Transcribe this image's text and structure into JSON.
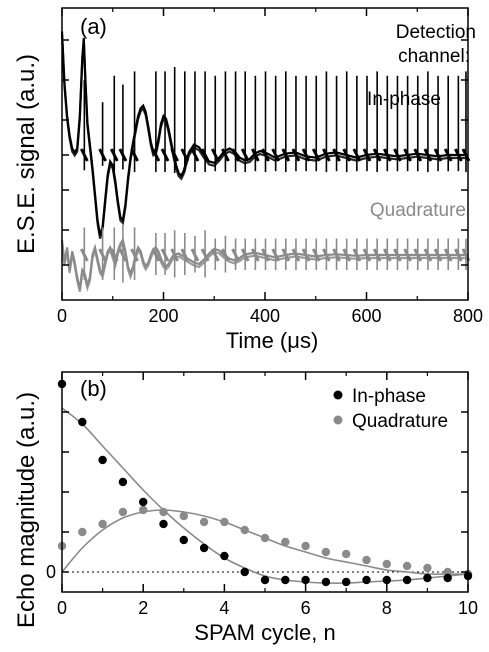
{
  "chart_data": [
    {
      "panel": "(a)",
      "type": "line",
      "xlabel": "Time (",
      "xlabel_mu": "μ",
      "xlabel_unit": "s)",
      "ylabel": "E.S.E. signal (a.u.)",
      "xlim": [
        0,
        800
      ],
      "xticks": [
        "0",
        "200",
        "400",
        "600",
        "800"
      ],
      "yticks_labeled": false,
      "annotation_lines": [
        "Detection",
        "channel:"
      ],
      "series": [
        {
          "name": "In-phase",
          "color": "#000000",
          "baseline": 0,
          "comment_values": "smooth echo envelope decaying to baseline with sharp periodic spikes",
          "points": [
            [
              0,
              0.95
            ],
            [
              5,
              0.55
            ],
            [
              10,
              0.3
            ],
            [
              15,
              0.15
            ],
            [
              20,
              0.05
            ],
            [
              25,
              0.02
            ],
            [
              30,
              0.05
            ],
            [
              35,
              0.3
            ],
            [
              40,
              0.75
            ],
            [
              43,
              0.9
            ],
            [
              46,
              0.6
            ],
            [
              50,
              0.25
            ],
            [
              55,
              0.08
            ],
            [
              60,
              -0.1
            ],
            [
              65,
              -0.3
            ],
            [
              70,
              -0.5
            ],
            [
              75,
              -0.62
            ],
            [
              80,
              -0.55
            ],
            [
              85,
              -0.35
            ],
            [
              90,
              -0.15
            ],
            [
              95,
              -0.05
            ],
            [
              100,
              -0.08
            ],
            [
              105,
              -0.2
            ],
            [
              110,
              -0.35
            ],
            [
              115,
              -0.48
            ],
            [
              120,
              -0.5
            ],
            [
              125,
              -0.38
            ],
            [
              130,
              -0.18
            ],
            [
              135,
              -0.02
            ],
            [
              140,
              0.1
            ],
            [
              145,
              0.2
            ],
            [
              150,
              0.3
            ],
            [
              155,
              0.36
            ],
            [
              160,
              0.38
            ],
            [
              165,
              0.33
            ],
            [
              170,
              0.22
            ],
            [
              175,
              0.1
            ],
            [
              180,
              0.02
            ],
            [
              185,
              0.03
            ],
            [
              190,
              0.12
            ],
            [
              195,
              0.24
            ],
            [
              200,
              0.3
            ],
            [
              205,
              0.28
            ],
            [
              210,
              0.2
            ],
            [
              215,
              0.1
            ],
            [
              220,
              0.0
            ],
            [
              225,
              -0.08
            ],
            [
              230,
              -0.14
            ],
            [
              235,
              -0.16
            ],
            [
              240,
              -0.12
            ],
            [
              245,
              -0.05
            ],
            [
              250,
              0.02
            ],
            [
              260,
              0.08
            ],
            [
              270,
              0.06
            ],
            [
              280,
              0.0
            ],
            [
              290,
              -0.05
            ],
            [
              300,
              -0.06
            ],
            [
              310,
              -0.02
            ],
            [
              320,
              0.03
            ],
            [
              330,
              0.05
            ],
            [
              340,
              0.03
            ],
            [
              350,
              -0.02
            ],
            [
              360,
              -0.04
            ],
            [
              370,
              -0.03
            ],
            [
              380,
              0.01
            ],
            [
              390,
              0.03
            ],
            [
              400,
              0.02
            ],
            [
              420,
              -0.02
            ],
            [
              440,
              0.01
            ],
            [
              460,
              0.02
            ],
            [
              480,
              -0.01
            ],
            [
              500,
              -0.02
            ],
            [
              520,
              0.01
            ],
            [
              540,
              0.02
            ],
            [
              560,
              0.0
            ],
            [
              580,
              -0.02
            ],
            [
              600,
              0.0
            ],
            [
              620,
              0.01
            ],
            [
              640,
              0.0
            ],
            [
              660,
              -0.01
            ],
            [
              680,
              0.0
            ],
            [
              700,
              0.01
            ],
            [
              720,
              0.0
            ],
            [
              740,
              -0.01
            ],
            [
              760,
              0.0
            ],
            [
              780,
              0.0
            ],
            [
              800,
              0.0
            ]
          ],
          "spikes_x": [
            44,
            80,
            103,
            120,
            143,
            185,
            203,
            222,
            242,
            262,
            282,
            302,
            322,
            342,
            361,
            381,
            401,
            421,
            441,
            461,
            481,
            501,
            521,
            541,
            561,
            581,
            601,
            621,
            641,
            661,
            681,
            701,
            721,
            741,
            761,
            781,
            796
          ],
          "spike_amp": [
            0.85,
            0.6,
            0.9,
            0.8,
            0.95,
            0.95,
            0.95,
            1.0,
            0.95,
            0.95,
            0.95,
            0.9,
            0.95,
            0.95,
            0.95,
            0.9,
            0.95,
            0.9,
            0.95,
            0.9,
            0.9,
            0.9,
            0.95,
            0.9,
            0.95,
            0.9,
            0.9,
            0.95,
            0.9,
            0.9,
            0.9,
            0.9,
            0.95,
            0.9,
            0.9,
            0.9,
            0.95
          ]
        },
        {
          "name": "Quadrature",
          "color": "#8a8a8a",
          "baseline": 0,
          "points": [
            [
              0,
              0.2
            ],
            [
              5,
              -0.1
            ],
            [
              10,
              0.1
            ],
            [
              15,
              -0.2
            ],
            [
              20,
              0.05
            ],
            [
              25,
              -0.1
            ],
            [
              30,
              -0.3
            ],
            [
              35,
              -0.45
            ],
            [
              40,
              -0.2
            ],
            [
              45,
              -0.25
            ],
            [
              50,
              -0.4
            ],
            [
              55,
              -0.3
            ],
            [
              60,
              0.0
            ],
            [
              65,
              0.1
            ],
            [
              70,
              -0.05
            ],
            [
              75,
              -0.2
            ],
            [
              80,
              -0.25
            ],
            [
              85,
              -0.1
            ],
            [
              90,
              0.05
            ],
            [
              95,
              0.1
            ],
            [
              100,
              0.0
            ],
            [
              105,
              -0.1
            ],
            [
              110,
              0.05
            ],
            [
              115,
              0.15
            ],
            [
              120,
              0.2
            ],
            [
              125,
              0.05
            ],
            [
              130,
              -0.15
            ],
            [
              135,
              -0.25
            ],
            [
              140,
              -0.15
            ],
            [
              145,
              0.0
            ],
            [
              150,
              0.1
            ],
            [
              155,
              0.05
            ],
            [
              160,
              -0.08
            ],
            [
              165,
              -0.15
            ],
            [
              170,
              -0.1
            ],
            [
              175,
              0.0
            ],
            [
              180,
              0.08
            ],
            [
              185,
              0.1
            ],
            [
              190,
              0.05
            ],
            [
              195,
              -0.05
            ],
            [
              200,
              -0.12
            ],
            [
              205,
              -0.15
            ],
            [
              210,
              -0.12
            ],
            [
              215,
              -0.05
            ],
            [
              220,
              0.0
            ],
            [
              230,
              0.02
            ],
            [
              240,
              -0.02
            ],
            [
              250,
              -0.06
            ],
            [
              260,
              -0.1
            ],
            [
              270,
              -0.12
            ],
            [
              280,
              -0.06
            ],
            [
              290,
              0.02
            ],
            [
              300,
              0.08
            ],
            [
              310,
              0.06
            ],
            [
              320,
              0.0
            ],
            [
              330,
              -0.05
            ],
            [
              340,
              -0.07
            ],
            [
              350,
              -0.04
            ],
            [
              360,
              0.01
            ],
            [
              380,
              0.03
            ],
            [
              400,
              0.0
            ],
            [
              420,
              -0.03
            ],
            [
              440,
              0.0
            ],
            [
              460,
              0.02
            ],
            [
              480,
              0.0
            ],
            [
              500,
              -0.02
            ],
            [
              520,
              0.0
            ],
            [
              540,
              0.01
            ],
            [
              560,
              0.0
            ],
            [
              580,
              -0.01
            ],
            [
              600,
              0.0
            ],
            [
              640,
              0.0
            ],
            [
              680,
              0.0
            ],
            [
              720,
              0.0
            ],
            [
              760,
              0.0
            ],
            [
              800,
              0.0
            ]
          ],
          "spikes_x": [
            44,
            80,
            103,
            120,
            143,
            185,
            203,
            222,
            242,
            262,
            282,
            302,
            322,
            342,
            361,
            381,
            401,
            421,
            441,
            461,
            481,
            501,
            521,
            541,
            561,
            581,
            601,
            621,
            641,
            661,
            681,
            701,
            721,
            741,
            761,
            781,
            796
          ],
          "spike_amp": [
            0.5,
            0.5,
            0.5,
            0.55,
            0.5,
            0.4,
            0.4,
            0.45,
            0.4,
            0.35,
            0.45,
            0.3,
            0.35,
            0.3,
            0.3,
            0.3,
            0.3,
            0.3,
            0.3,
            0.3,
            0.3,
            0.3,
            0.3,
            0.3,
            0.3,
            0.3,
            0.3,
            0.3,
            0.3,
            0.3,
            0.3,
            0.3,
            0.3,
            0.3,
            0.3,
            0.3,
            0.3
          ]
        }
      ]
    },
    {
      "panel": "(b)",
      "type": "scatter",
      "xlabel": "SPAM cycle, n",
      "ylabel": "Echo magnitude (a.u.)",
      "xlim": [
        0,
        10
      ],
      "ylim": [
        -0.1,
        1.0
      ],
      "xticks": [
        "0",
        "2",
        "4",
        "6",
        "8",
        "10"
      ],
      "ytick_zero_label": "0",
      "legend_position": "top-right",
      "series": [
        {
          "name": "In-phase",
          "color": "#000000",
          "x": [
            0,
            0.5,
            1,
            1.5,
            2,
            2.5,
            3,
            3.5,
            4,
            4.5,
            5,
            5.5,
            6,
            6.5,
            7,
            7.5,
            8,
            8.5,
            9,
            9.5,
            10
          ],
          "y": [
            0.94,
            0.75,
            0.56,
            0.45,
            0.35,
            0.24,
            0.16,
            0.12,
            0.08,
            0.0,
            -0.04,
            -0.04,
            -0.04,
            -0.05,
            -0.05,
            -0.04,
            -0.04,
            -0.04,
            -0.03,
            -0.03,
            -0.02
          ]
        },
        {
          "name": "Quadrature",
          "color": "#8a8a8a",
          "x": [
            0,
            0.5,
            1,
            1.5,
            2,
            2.5,
            3,
            3.5,
            4,
            4.5,
            5,
            5.5,
            6,
            6.5,
            7,
            7.5,
            8,
            8.5,
            9,
            9.5,
            10
          ],
          "y": [
            0.13,
            0.2,
            0.24,
            0.3,
            0.31,
            0.3,
            0.28,
            0.25,
            0.25,
            0.21,
            0.17,
            0.15,
            0.13,
            0.1,
            0.09,
            0.06,
            0.04,
            0.03,
            0.02,
            0.0,
            -0.01
          ]
        }
      ],
      "fits": [
        {
          "of": "In-phase",
          "color": "#8a8a8a",
          "x": [
            0,
            0.5,
            1,
            1.5,
            2,
            2.5,
            3,
            3.5,
            4,
            4.5,
            5,
            5.5,
            6,
            6.5,
            7,
            7.5,
            8,
            8.5,
            9,
            9.5,
            10
          ],
          "y": [
            0.82,
            0.74,
            0.63,
            0.52,
            0.41,
            0.31,
            0.22,
            0.14,
            0.07,
            0.02,
            -0.02,
            -0.04,
            -0.05,
            -0.055,
            -0.055,
            -0.05,
            -0.045,
            -0.04,
            -0.03,
            -0.02,
            -0.01
          ]
        },
        {
          "of": "Quadrature",
          "color": "#8a8a8a",
          "x": [
            0,
            0.5,
            1,
            1.5,
            2,
            2.5,
            3,
            3.5,
            4,
            4.5,
            5,
            5.5,
            6,
            6.5,
            7,
            7.5,
            8,
            8.5,
            9,
            9.5,
            10
          ],
          "y": [
            0.0,
            0.12,
            0.21,
            0.27,
            0.3,
            0.31,
            0.3,
            0.28,
            0.25,
            0.21,
            0.17,
            0.13,
            0.1,
            0.07,
            0.05,
            0.03,
            0.01,
            0.0,
            -0.01,
            -0.01,
            -0.01
          ]
        }
      ]
    }
  ]
}
